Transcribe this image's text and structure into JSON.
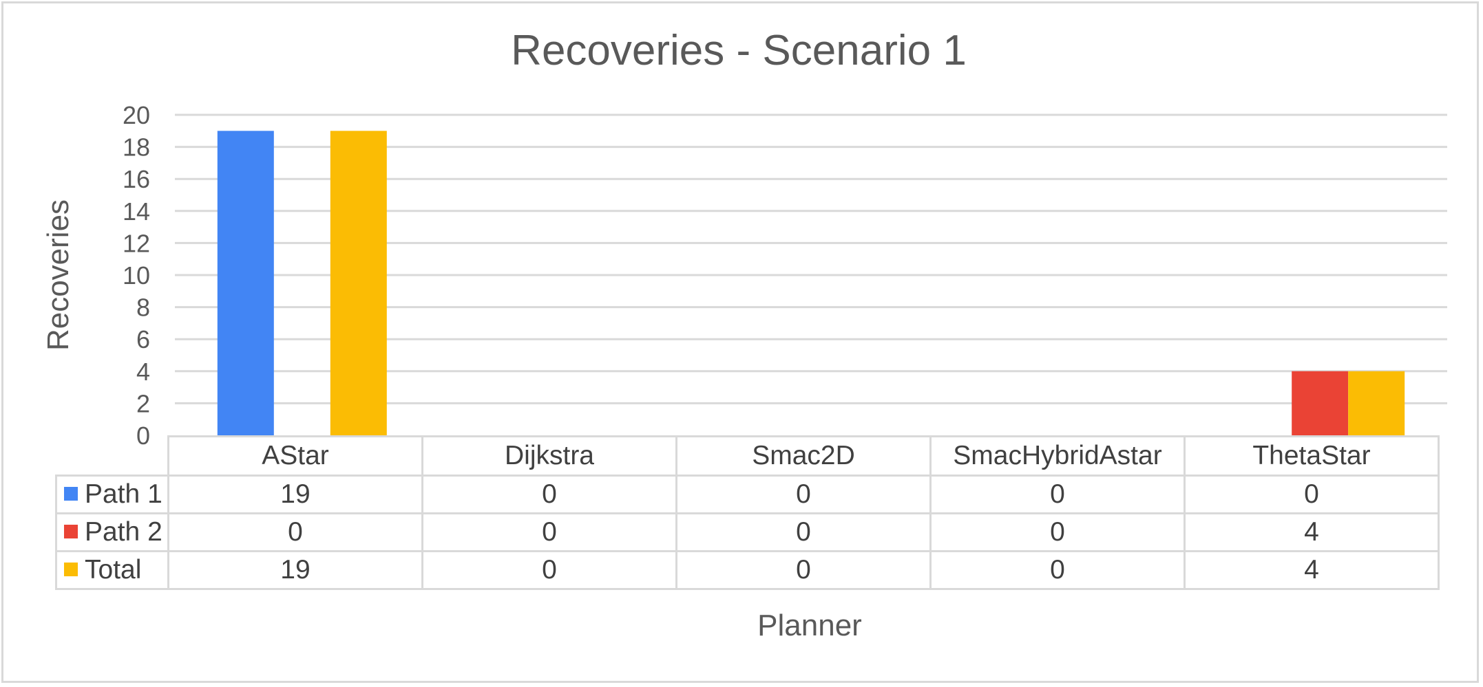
{
  "chart_data": {
    "type": "bar",
    "title": "Recoveries - Scenario 1",
    "xlabel": "Planner",
    "ylabel": "Recoveries",
    "categories": [
      "AStar",
      "Dijkstra",
      "Smac2D",
      "SmacHybridAstar",
      "ThetaStar"
    ],
    "series": [
      {
        "name": "Path 1",
        "values": [
          19,
          0,
          0,
          0,
          0
        ],
        "color": "#4285f4"
      },
      {
        "name": "Path 2",
        "values": [
          0,
          0,
          0,
          0,
          4
        ],
        "color": "#ea4335"
      },
      {
        "name": "Total",
        "values": [
          19,
          0,
          0,
          0,
          4
        ],
        "color": "#fbbc04"
      }
    ],
    "ylim": [
      0,
      20
    ],
    "yticks": [
      "0",
      "2",
      "4",
      "6",
      "8",
      "10",
      "12",
      "14",
      "16",
      "18",
      "20"
    ],
    "grid": true,
    "legend": "data-table"
  }
}
